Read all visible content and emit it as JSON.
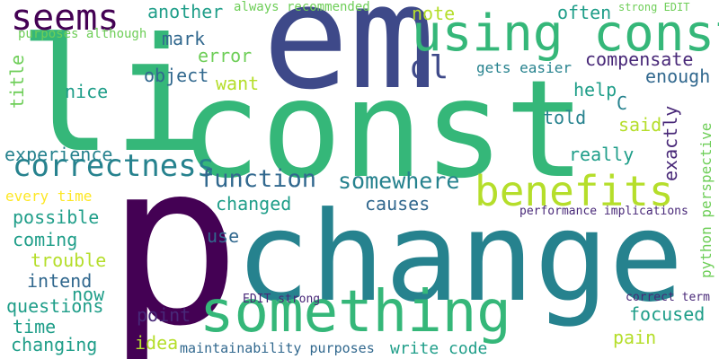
{
  "palette": {
    "dark_purple": "#440154",
    "indigo": "#482878",
    "blue_purple": "#3e4989",
    "slate_blue": "#31688e",
    "steel_teal": "#26828e",
    "teal": "#1f9e89",
    "green_teal": "#35b779",
    "green": "#6ece58",
    "lime": "#b5de2b",
    "yellow": "#fde725"
  },
  "words": [
    {
      "text": "p"
    },
    {
      "text": "change"
    },
    {
      "text": "const"
    },
    {
      "text": "li"
    },
    {
      "text": "em"
    },
    {
      "text": "something"
    },
    {
      "text": "using const"
    },
    {
      "text": "benefits"
    },
    {
      "text": "seems"
    },
    {
      "text": "correctness"
    },
    {
      "text": "function"
    },
    {
      "text": "somewhere"
    },
    {
      "text": "ol"
    },
    {
      "text": "another"
    },
    {
      "text": "always recommended"
    },
    {
      "text": "note"
    },
    {
      "text": "often"
    },
    {
      "text": "strong EDIT"
    },
    {
      "text": "purposes although"
    },
    {
      "text": "mark"
    },
    {
      "text": "error"
    },
    {
      "text": "compensate"
    },
    {
      "text": "object"
    },
    {
      "text": "gets easier"
    },
    {
      "text": "want"
    },
    {
      "text": "enough"
    },
    {
      "text": "title"
    },
    {
      "text": "nice"
    },
    {
      "text": "help"
    },
    {
      "text": "C"
    },
    {
      "text": "told"
    },
    {
      "text": "said"
    },
    {
      "text": "exactly"
    },
    {
      "text": "python perspective"
    },
    {
      "text": "experience"
    },
    {
      "text": "really"
    },
    {
      "text": "every time"
    },
    {
      "text": "changed"
    },
    {
      "text": "causes"
    },
    {
      "text": "performance implications"
    },
    {
      "text": "possible"
    },
    {
      "text": "coming"
    },
    {
      "text": "use"
    },
    {
      "text": "trouble"
    },
    {
      "text": "intend"
    },
    {
      "text": "now"
    },
    {
      "text": "questions"
    },
    {
      "text": "EDIT strong"
    },
    {
      "text": "correct term"
    },
    {
      "text": "point"
    },
    {
      "text": "focused"
    },
    {
      "text": "time"
    },
    {
      "text": "changing"
    },
    {
      "text": "idea"
    },
    {
      "text": "pain"
    },
    {
      "text": "maintainability purposes"
    },
    {
      "text": "write code"
    }
  ]
}
